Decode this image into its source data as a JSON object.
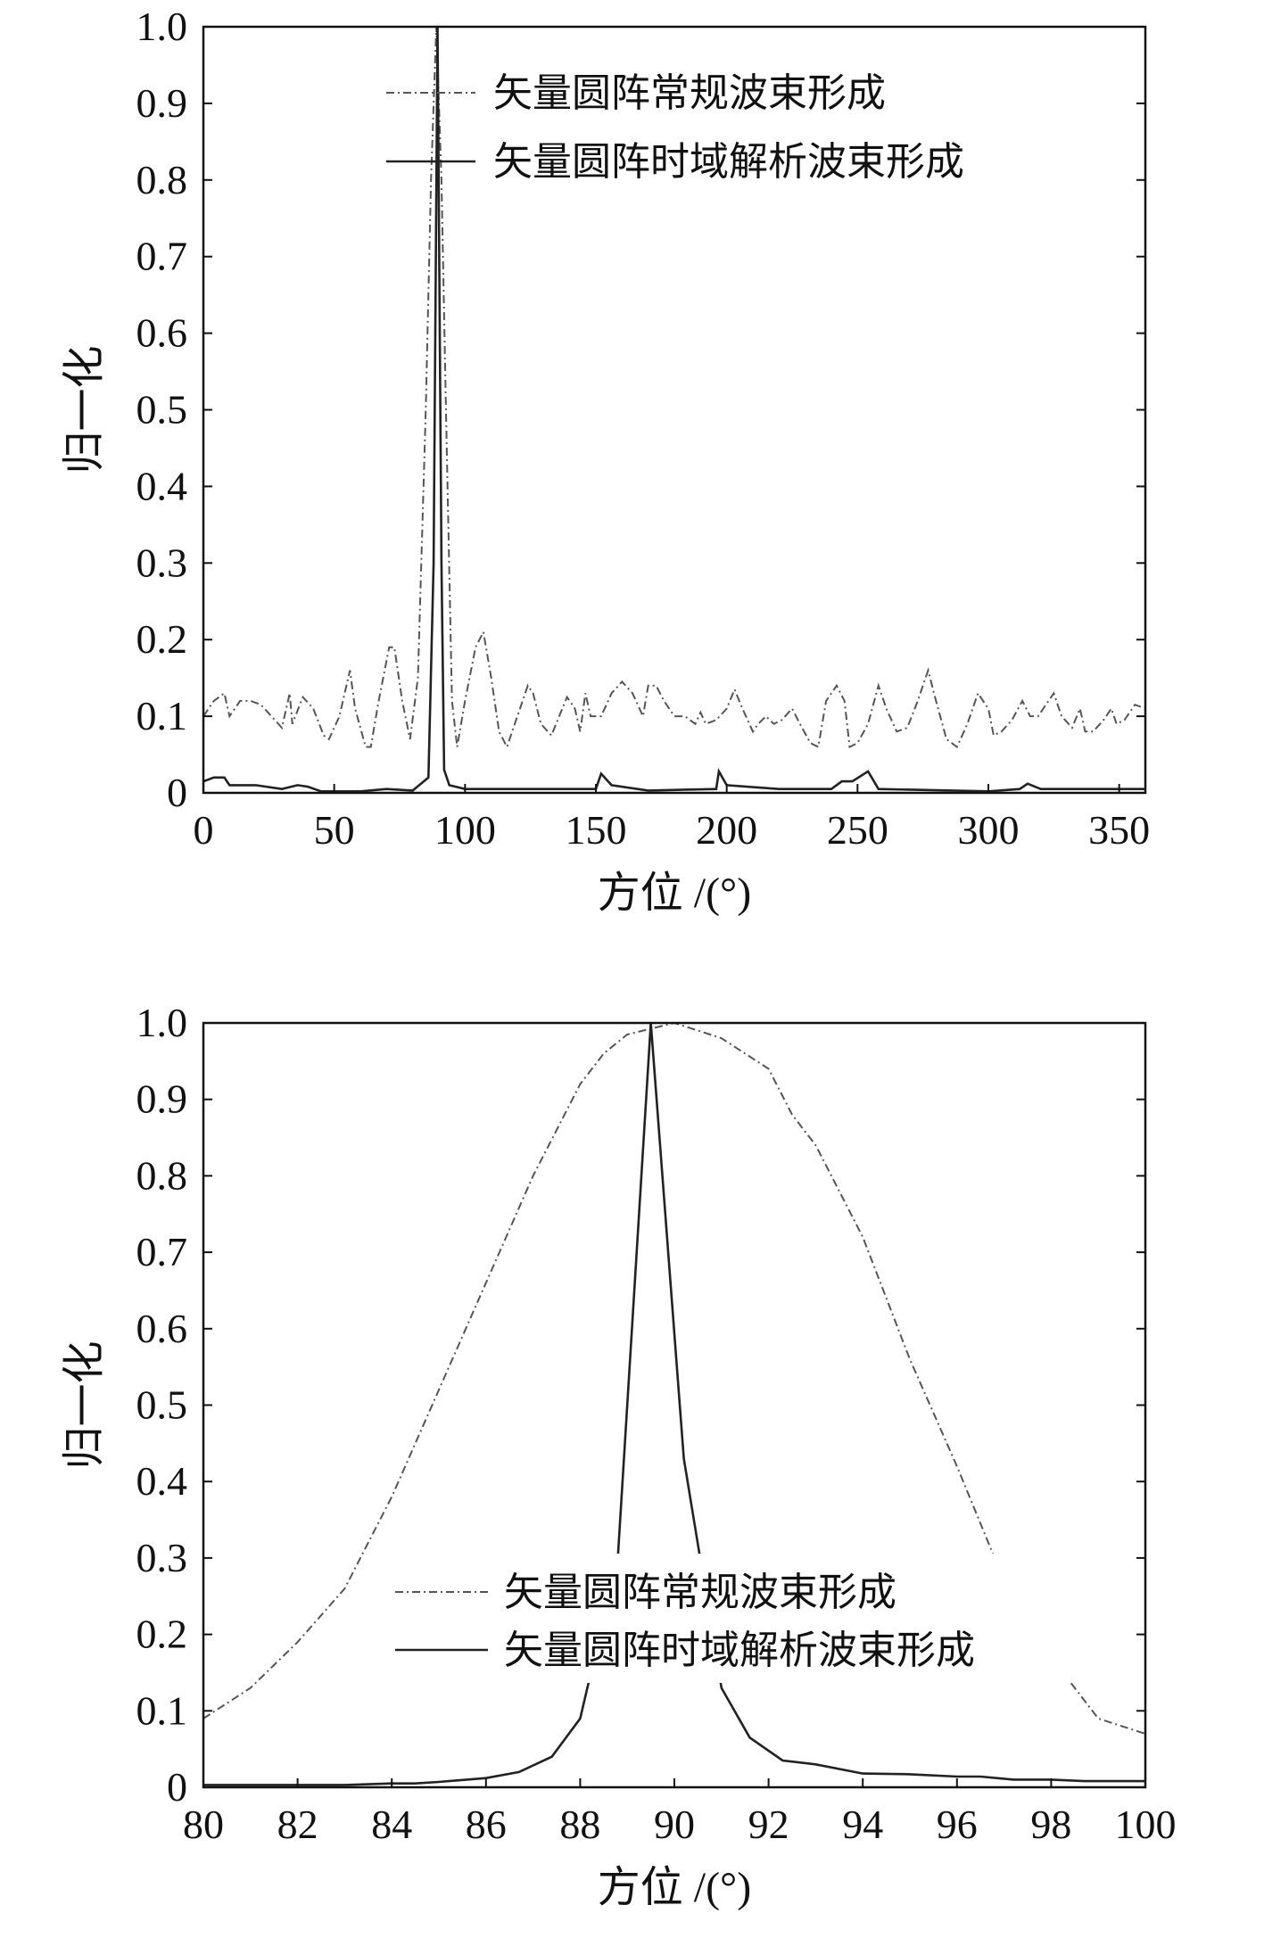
{
  "chart_data": [
    {
      "type": "line",
      "xlabel": "方位 /(°)",
      "ylabel": "归一化",
      "xlim": [
        0,
        360
      ],
      "ylim": [
        0,
        1.0
      ],
      "xticks": [
        "0",
        "50",
        "100",
        "150",
        "200",
        "250",
        "300",
        "350"
      ],
      "yticks": [
        "0",
        "0.1",
        "0.2",
        "0.3",
        "0.4",
        "0.5",
        "0.6",
        "0.7",
        "0.8",
        "0.9",
        "1.0"
      ],
      "grid": false,
      "legend_position": "top-right",
      "series": [
        {
          "name": "矢量圆阵常规波束形成",
          "style": "dash-dot",
          "color": "#555555",
          "x": [
            0,
            4,
            8,
            10,
            14,
            18,
            22,
            26,
            30,
            33,
            34,
            38,
            42,
            46,
            48,
            52,
            56,
            58,
            62,
            64,
            67,
            71,
            73,
            76,
            79,
            82,
            85,
            87,
            89,
            91,
            93,
            95,
            97,
            100,
            104,
            107,
            110,
            113,
            116,
            120,
            124,
            126,
            129,
            133,
            136,
            139,
            142,
            144,
            146,
            148,
            152,
            156,
            160,
            164,
            168,
            170,
            173,
            176,
            180,
            184,
            188,
            190,
            192,
            196,
            200,
            203,
            206,
            210,
            212,
            215,
            218,
            221,
            225,
            228,
            232,
            235,
            238,
            242,
            245,
            247,
            250,
            254,
            258,
            261,
            265,
            269,
            273,
            277,
            280,
            284,
            288,
            292,
            296,
            300,
            302,
            305,
            309,
            313,
            316,
            319,
            322,
            325,
            328,
            332,
            335,
            337,
            340,
            344,
            347,
            349,
            352,
            356,
            360
          ],
          "y": [
            0.1,
            0.12,
            0.13,
            0.1,
            0.12,
            0.12,
            0.115,
            0.1,
            0.085,
            0.13,
            0.09,
            0.125,
            0.11,
            0.075,
            0.07,
            0.1,
            0.16,
            0.11,
            0.06,
            0.06,
            0.12,
            0.19,
            0.19,
            0.12,
            0.07,
            0.15,
            0.5,
            0.8,
            1.0,
            0.8,
            0.45,
            0.12,
            0.06,
            0.12,
            0.19,
            0.21,
            0.15,
            0.08,
            0.06,
            0.1,
            0.14,
            0.13,
            0.09,
            0.075,
            0.1,
            0.125,
            0.11,
            0.08,
            0.13,
            0.1,
            0.1,
            0.13,
            0.145,
            0.13,
            0.1,
            0.14,
            0.14,
            0.12,
            0.1,
            0.1,
            0.09,
            0.105,
            0.09,
            0.095,
            0.11,
            0.135,
            0.11,
            0.08,
            0.09,
            0.1,
            0.09,
            0.095,
            0.11,
            0.09,
            0.065,
            0.06,
            0.12,
            0.14,
            0.12,
            0.06,
            0.065,
            0.09,
            0.14,
            0.11,
            0.08,
            0.085,
            0.12,
            0.16,
            0.12,
            0.07,
            0.06,
            0.09,
            0.13,
            0.11,
            0.075,
            0.08,
            0.095,
            0.12,
            0.1,
            0.1,
            0.115,
            0.13,
            0.1,
            0.085,
            0.11,
            0.08,
            0.08,
            0.095,
            0.11,
            0.09,
            0.095,
            0.115,
            0.11
          ]
        },
        {
          "name": "矢量圆阵时域解析波束形成",
          "style": "solid",
          "color": "#222222",
          "x": [
            0,
            4,
            8,
            10,
            20,
            30,
            36,
            40,
            45,
            60,
            70,
            80,
            86,
            88,
            89.5,
            91,
            92,
            94,
            100,
            150,
            152,
            156,
            170,
            196,
            197,
            200,
            220,
            240,
            244,
            248,
            254,
            258,
            300,
            312,
            315,
            320,
            360
          ],
          "y": [
            0.015,
            0.02,
            0.02,
            0.01,
            0.01,
            0.005,
            0.01,
            0.008,
            0.002,
            0.002,
            0.005,
            0.003,
            0.02,
            0.3,
            1.0,
            0.3,
            0.03,
            0.01,
            0.005,
            0.005,
            0.025,
            0.01,
            0.003,
            0.005,
            0.028,
            0.01,
            0.005,
            0.005,
            0.015,
            0.015,
            0.028,
            0.005,
            0.002,
            0.005,
            0.012,
            0.005,
            0.005
          ]
        }
      ]
    },
    {
      "type": "line",
      "xlabel": "方位 /(°)",
      "ylabel": "归一化",
      "xlim": [
        80,
        100
      ],
      "ylim": [
        0,
        1.0
      ],
      "xticks": [
        "80",
        "82",
        "84",
        "86",
        "88",
        "90",
        "92",
        "94",
        "96",
        "98",
        "100"
      ],
      "yticks": [
        "0",
        "0.1",
        "0.2",
        "0.3",
        "0.4",
        "0.5",
        "0.6",
        "0.7",
        "0.8",
        "0.9",
        "1.0"
      ],
      "grid": false,
      "legend_position": "bottom-center",
      "series": [
        {
          "name": "矢量圆阵常规波束形成",
          "style": "dash-dot",
          "color": "#555555",
          "x": [
            80,
            81,
            82,
            83,
            84,
            85,
            86,
            87,
            88,
            88.5,
            89,
            90,
            91,
            92,
            92.5,
            93,
            94,
            95,
            96,
            97,
            98,
            99,
            100
          ],
          "y": [
            0.09,
            0.13,
            0.19,
            0.26,
            0.38,
            0.52,
            0.66,
            0.8,
            0.92,
            0.96,
            0.985,
            1.0,
            0.98,
            0.94,
            0.88,
            0.84,
            0.72,
            0.56,
            0.42,
            0.27,
            0.17,
            0.09,
            0.07
          ]
        },
        {
          "name": "矢量圆阵时域解析波束形成",
          "style": "solid",
          "color": "#222222",
          "x": [
            80,
            81,
            82,
            83,
            84,
            84.5,
            85,
            86,
            86.7,
            87.4,
            88,
            88.8,
            89.5,
            90.2,
            91,
            91.6,
            92.3,
            93,
            94,
            95,
            96,
            96.5,
            97.2,
            98,
            98.7,
            100
          ],
          "y": [
            0.003,
            0.003,
            0.003,
            0.003,
            0.005,
            0.005,
            0.007,
            0.012,
            0.02,
            0.04,
            0.09,
            0.3,
            1.0,
            0.43,
            0.13,
            0.065,
            0.035,
            0.03,
            0.018,
            0.017,
            0.014,
            0.014,
            0.01,
            0.01,
            0.008,
            0.008
          ]
        }
      ]
    }
  ]
}
